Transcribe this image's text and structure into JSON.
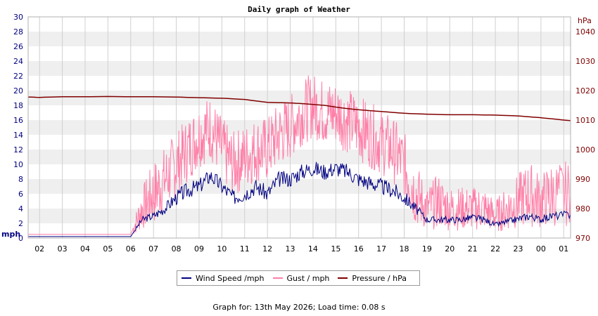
{
  "chart_data": {
    "type": "line",
    "title": "Daily graph of Weather",
    "left_axis": {
      "unit_label": "mph",
      "range": [
        0,
        30
      ],
      "ticks": [
        0,
        2,
        4,
        6,
        8,
        10,
        12,
        14,
        16,
        18,
        20,
        22,
        24,
        26,
        28,
        30
      ]
    },
    "right_axis": {
      "unit_label": "hPa",
      "range": [
        970,
        1045
      ],
      "ticks": [
        970,
        980,
        990,
        1000,
        1010,
        1020,
        1030,
        1040
      ]
    },
    "x_tick_labels": [
      "02",
      "03",
      "04",
      "05",
      "06",
      "07",
      "08",
      "09",
      "10",
      "11",
      "12",
      "13",
      "14",
      "15",
      "16",
      "17",
      "18",
      "19",
      "20",
      "21",
      "22",
      "23",
      "00",
      "01"
    ],
    "grid": true,
    "legend_position": "bottom",
    "colors": {
      "wind": "#000080",
      "gust": "#ff7fa8",
      "pressure": "#800000",
      "left_axis": "#000080",
      "right_axis": "#800000",
      "band": "#efefef",
      "grid": "#d0d0d0"
    },
    "series": [
      {
        "name": "Wind Speed /mph",
        "axis": "left",
        "hours": [
          1.5,
          2,
          3,
          4,
          5,
          6,
          6.5,
          7,
          7.5,
          8,
          8.5,
          9,
          9.5,
          10,
          10.5,
          11,
          11.5,
          12,
          12.5,
          13,
          13.5,
          14,
          14.5,
          15,
          15.5,
          16,
          16.5,
          17,
          17.5,
          18,
          18.5,
          19,
          19.5,
          20,
          20.5,
          21,
          21.5,
          22,
          22.5,
          23,
          23.5,
          24,
          24.5,
          25.3
        ],
        "values": [
          0.2,
          0.2,
          0.2,
          0.2,
          0.2,
          0.2,
          2.5,
          3,
          4,
          5.5,
          6.5,
          7,
          8.5,
          7,
          5.5,
          6,
          7,
          6,
          8,
          8,
          9,
          9.5,
          9,
          9.5,
          9,
          8,
          7.5,
          7,
          6.5,
          5.5,
          4,
          2.5,
          2.5,
          2.5,
          2.5,
          2.8,
          2.5,
          1.8,
          2.2,
          2.6,
          3,
          2.5,
          3,
          3.2
        ]
      },
      {
        "name": "Gust / mph",
        "axis": "left",
        "hours": [
          1.5,
          2,
          3,
          4,
          5,
          6,
          6.5,
          7,
          7.5,
          8,
          8.5,
          9,
          9.5,
          10,
          10.5,
          11,
          11.5,
          12,
          12.5,
          13,
          13.5,
          14,
          14.5,
          15,
          15.5,
          16,
          16.5,
          17,
          17.5,
          18,
          18.5,
          19,
          19.5,
          20,
          20.5,
          21,
          21.5,
          22,
          22.5,
          23,
          23.5,
          24,
          24.5,
          25.3
        ],
        "values": [
          0.5,
          0.5,
          0.5,
          0.5,
          0.5,
          0.5,
          4,
          6,
          8,
          10,
          12,
          14,
          15,
          12,
          10,
          11,
          12,
          12,
          14,
          15,
          17,
          18,
          17,
          17,
          16,
          15,
          14,
          13,
          12,
          10,
          6,
          4,
          5,
          4,
          4,
          4,
          4,
          3,
          4,
          5,
          6,
          5,
          6,
          6
        ]
      },
      {
        "name": "Pressure / hPa",
        "axis": "right",
        "hours": [
          1.5,
          2,
          3,
          4,
          5,
          6,
          7,
          8,
          9,
          10,
          11,
          11.5,
          12,
          12.5,
          13,
          13.5,
          14,
          14.5,
          15,
          15.5,
          16,
          16.5,
          17,
          17.5,
          18,
          19,
          20,
          21,
          22,
          23,
          23.5,
          24,
          24.5,
          25.3
        ],
        "values": [
          1017.8,
          1017.7,
          1017.9,
          1017.9,
          1018.0,
          1017.9,
          1017.9,
          1017.8,
          1017.6,
          1017.4,
          1017.0,
          1016.5,
          1016.0,
          1015.9,
          1015.8,
          1015.6,
          1015.3,
          1015.0,
          1014.4,
          1013.9,
          1013.5,
          1013.2,
          1012.9,
          1012.6,
          1012.3,
          1012.0,
          1011.8,
          1011.8,
          1011.7,
          1011.4,
          1011.1,
          1010.8,
          1010.4,
          1009.8
        ]
      }
    ]
  },
  "footer_text": "Graph for: 13th May 2026; Load time: 0.08 s"
}
